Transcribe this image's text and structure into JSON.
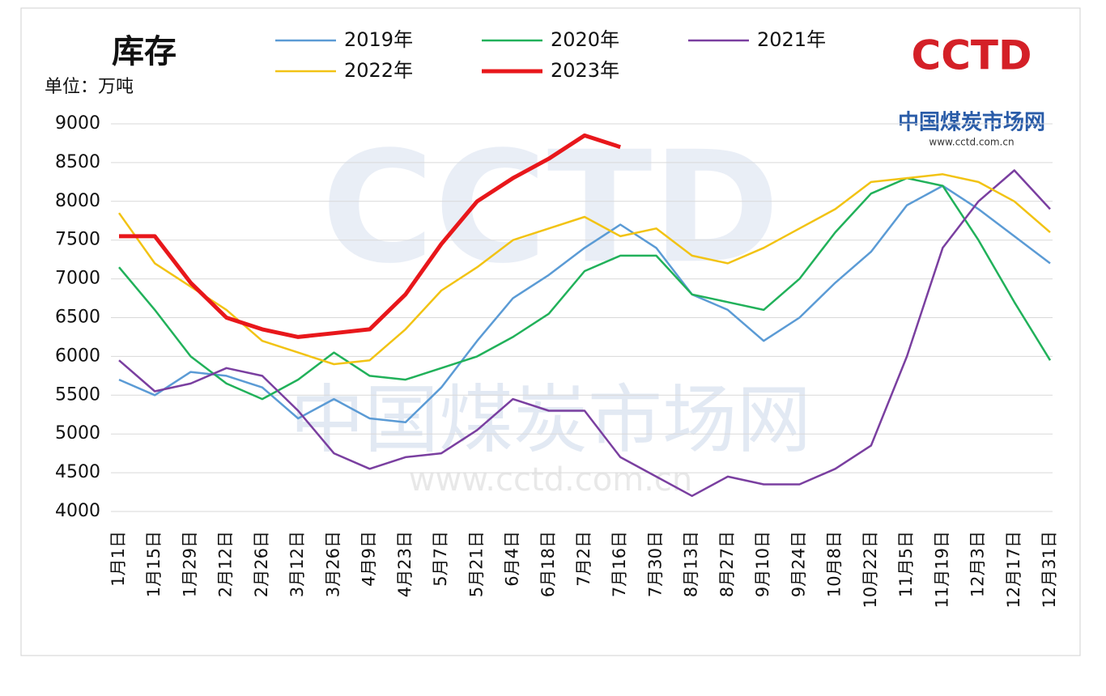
{
  "chart_data": {
    "type": "line",
    "title": "库存",
    "y_unit": "单位：万吨",
    "logo": {
      "mark": "CCTD",
      "name": "中国煤炭市场网",
      "url": "www.cctd.com.cn"
    },
    "categories": [
      "1月1日",
      "1月15日",
      "1月29日",
      "2月12日",
      "2月26日",
      "3月12日",
      "3月26日",
      "4月9日",
      "4月23日",
      "5月7日",
      "5月21日",
      "6月4日",
      "6月18日",
      "7月2日",
      "7月16日",
      "7月30日",
      "8月13日",
      "8月27日",
      "9月10日",
      "9月24日",
      "10月8日",
      "10月22日",
      "11月5日",
      "11月19日",
      "12月3日",
      "12月17日",
      "12月31日"
    ],
    "series": [
      {
        "name": "2019年",
        "color": "#5b9bd5",
        "width": 2.5,
        "values": [
          5700,
          5500,
          5800,
          5750,
          5600,
          5200,
          5450,
          5200,
          5150,
          5600,
          6200,
          6750,
          7050,
          7400,
          7700,
          7400,
          6800,
          6600,
          6200,
          6500,
          6950,
          7350,
          7950,
          8200,
          7900,
          7550,
          7200
        ]
      },
      {
        "name": "2020年",
        "color": "#21b15a",
        "width": 2.5,
        "values": [
          7150,
          6600,
          6000,
          5650,
          5450,
          5700,
          6050,
          5750,
          5700,
          5850,
          6000,
          6250,
          6550,
          7100,
          7300,
          7300,
          6800,
          6700,
          6600,
          7000,
          7600,
          8100,
          8300,
          8200,
          7500,
          6700,
          5950
        ]
      },
      {
        "name": "2021年",
        "color": "#7a3fa0",
        "width": 2.5,
        "values": [
          5950,
          5550,
          5650,
          5850,
          5750,
          5300,
          4750,
          4550,
          4700,
          4750,
          5050,
          5450,
          5300,
          5300,
          4700,
          4450,
          4200,
          4450,
          4350,
          4350,
          4550,
          4850,
          6000,
          7400,
          8000,
          8400,
          7900
        ]
      },
      {
        "name": "2022年",
        "color": "#f2c314",
        "width": 2.5,
        "values": [
          7850,
          7200,
          6900,
          6600,
          6200,
          6050,
          5900,
          5950,
          6350,
          6850,
          7150,
          7500,
          7650,
          7800,
          7550,
          7650,
          7300,
          7200,
          7400,
          7650,
          7900,
          8250,
          8300,
          8350,
          8250,
          8000,
          7600
        ]
      },
      {
        "name": "2023年",
        "color": "#e8171b",
        "width": 5,
        "values": [
          7550,
          7550,
          6950,
          6500,
          6350,
          6250,
          6300,
          6350,
          6800,
          7450,
          8000,
          8300,
          8550,
          8850,
          8700,
          null,
          null,
          null,
          null,
          null,
          null,
          null,
          null,
          null,
          null,
          null,
          null
        ]
      }
    ],
    "ylim": [
      4000,
      9000
    ],
    "yticks": [
      4000,
      4500,
      5000,
      5500,
      6000,
      6500,
      7000,
      7500,
      8000,
      8500,
      9000
    ],
    "grid": true
  }
}
